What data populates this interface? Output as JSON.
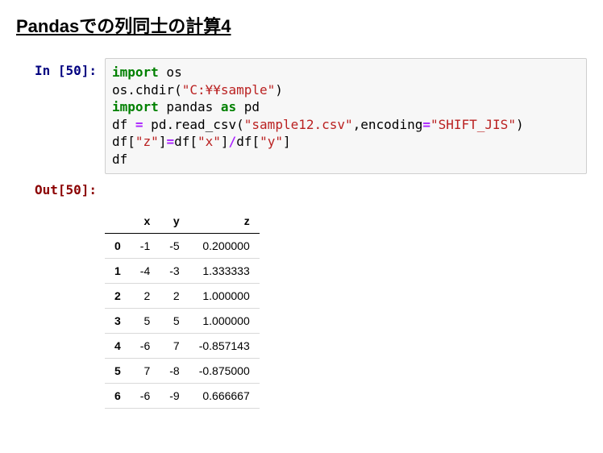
{
  "title": "Pandasでの列同士の計算4",
  "in_prompt": "In [50]:",
  "out_prompt": "Out[50]:",
  "code": {
    "kw_import1": "import",
    "os": " os",
    "line2a": "os.chdir(",
    "line2s": "\"C:¥¥sample\"",
    "line2b": ")",
    "kw_import2": "import",
    "pandas": " pandas ",
    "kw_as": "as",
    "pd": " pd",
    "l4a": "df ",
    "l4eq": "=",
    "l4b": " pd.read_csv(",
    "l4s1": "\"sample12.csv\"",
    "l4c": ",encoding",
    "l4eq2": "=",
    "l4s2": "\"SHIFT_JIS\"",
    "l4d": ")",
    "l5a": "df[",
    "l5s1": "\"z\"",
    "l5b": "]",
    "l5eq": "=",
    "l5c": "df[",
    "l5s2": "\"x\"",
    "l5d": "]",
    "l5op": "/",
    "l5e": "df[",
    "l5s3": "\"y\"",
    "l5f": "]",
    "l6": "df"
  },
  "table": {
    "columns": [
      "x",
      "y",
      "z"
    ],
    "index": [
      "0",
      "1",
      "2",
      "3",
      "4",
      "5",
      "6"
    ],
    "rows": [
      [
        "-1",
        "-5",
        "0.200000"
      ],
      [
        "-4",
        "-3",
        "1.333333"
      ],
      [
        "2",
        "2",
        "1.000000"
      ],
      [
        "5",
        "5",
        "1.000000"
      ],
      [
        "-6",
        "7",
        "-0.857143"
      ],
      [
        "7",
        "-8",
        "-0.875000"
      ],
      [
        "-6",
        "-9",
        "0.666667"
      ]
    ]
  }
}
